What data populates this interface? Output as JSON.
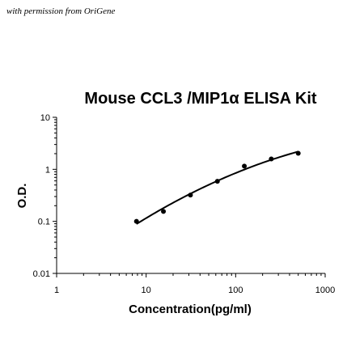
{
  "permission_note": "with permission from OriGene",
  "chart_data": {
    "type": "scatter",
    "title": "Mouse CCL3 /MIP1α ELISA Kit",
    "xlabel": "Concentration(pg/ml)",
    "ylabel": "O.D.",
    "x_scale": "log",
    "y_scale": "log",
    "xlim": [
      1,
      1000
    ],
    "ylim": [
      0.01,
      10
    ],
    "x_ticks": [
      "1",
      "10",
      "100",
      "1000"
    ],
    "y_ticks": [
      "0.01",
      "0.1",
      "1",
      "10"
    ],
    "grid": false,
    "legend": "none",
    "series": [
      {
        "x": [
          7.8,
          15.6,
          31.25,
          62.5,
          125,
          250,
          500
        ],
        "y": [
          0.1,
          0.155,
          0.32,
          0.59,
          1.15,
          1.58,
          2.03
        ],
        "fit": "curve"
      }
    ],
    "colors": {
      "marker": "#000000",
      "line": "#000000"
    }
  }
}
